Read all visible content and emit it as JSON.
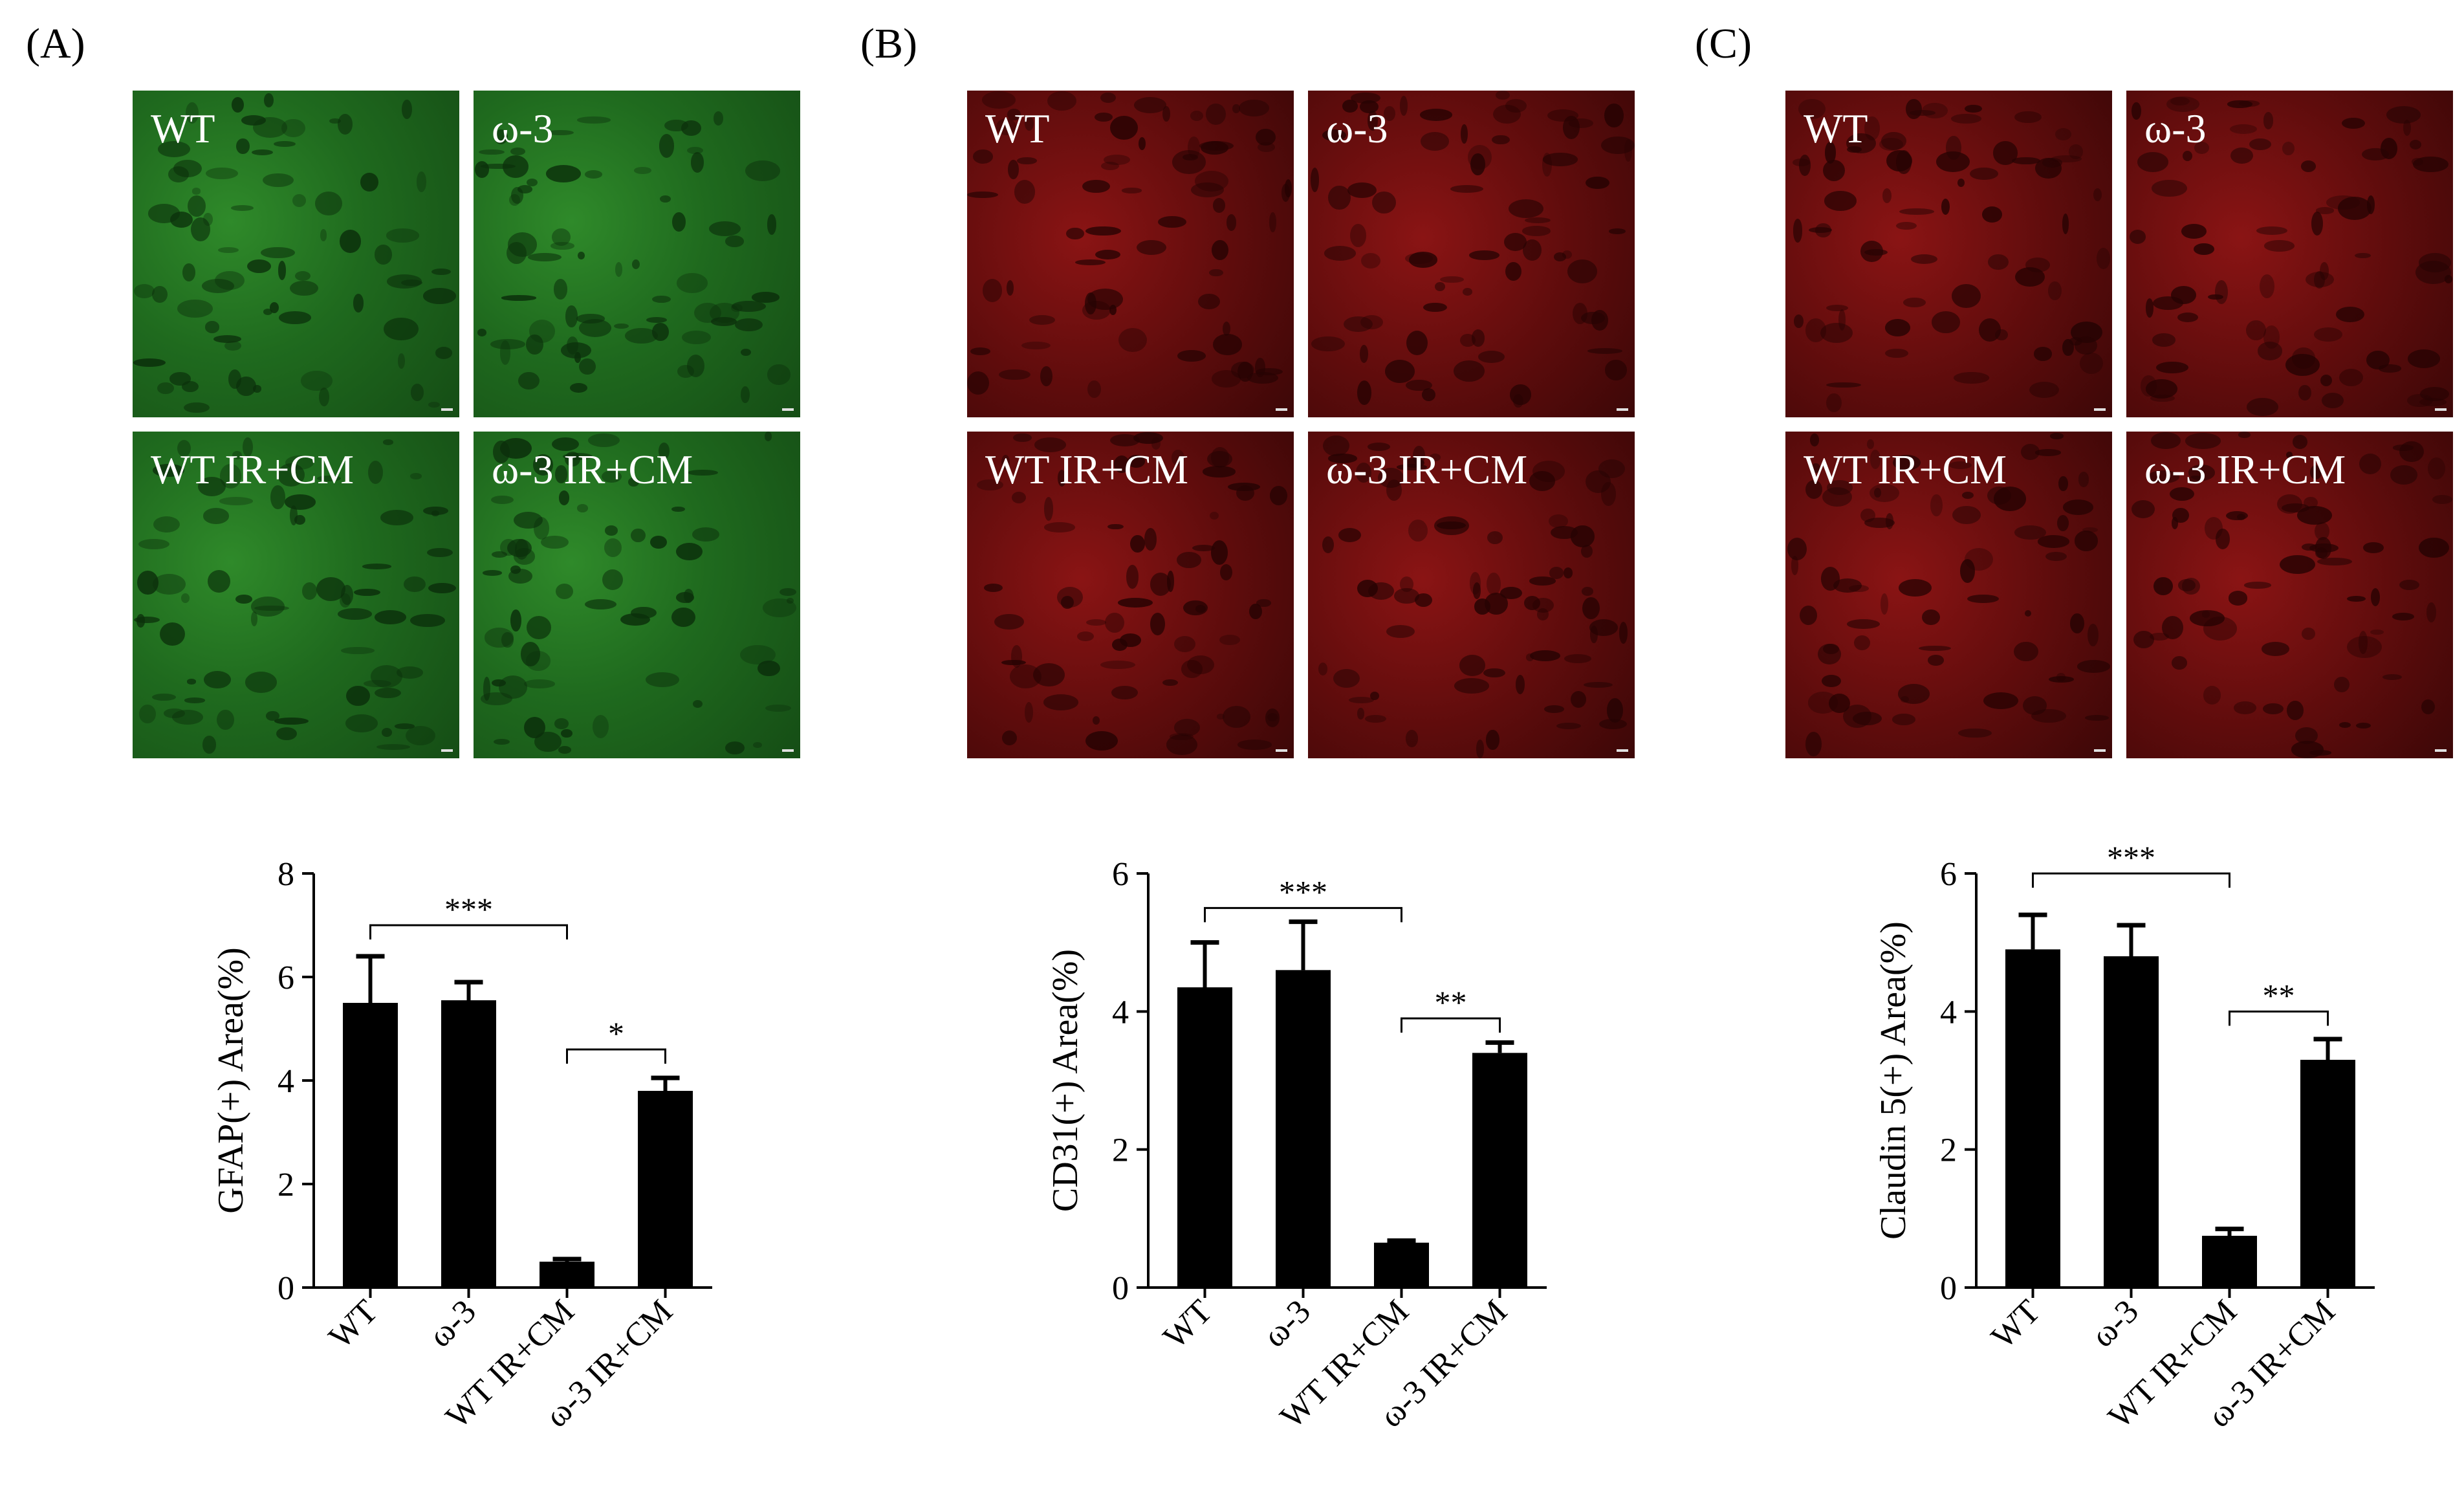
{
  "panels": [
    {
      "label": "(A)",
      "stain": "green",
      "images": [
        "WT",
        "ω-3",
        "WT IR+CM",
        "ω-3 IR+CM"
      ],
      "chart_data": {
        "type": "bar",
        "categories": [
          "WT",
          "ω-3",
          "WT IR+CM",
          "ω-3 IR+CM"
        ],
        "values": [
          5.5,
          5.55,
          0.5,
          3.8
        ],
        "errors": [
          0.9,
          0.35,
          0.05,
          0.25
        ],
        "ylabel": "GFAP(+) Area(%)",
        "ylim": [
          0,
          8
        ],
        "yticks": [
          0,
          2,
          4,
          6,
          8
        ],
        "bar_color": "#000000",
        "significance": [
          {
            "from": 0,
            "to": 2,
            "label": "***",
            "level": 7.0
          },
          {
            "from": 2,
            "to": 3,
            "label": "*",
            "level": 4.6
          }
        ]
      }
    },
    {
      "label": "(B)",
      "stain": "red",
      "images": [
        "WT",
        "ω-3",
        "WT IR+CM",
        "ω-3 IR+CM"
      ],
      "chart_data": {
        "type": "bar",
        "categories": [
          "WT",
          "ω-3",
          "WT IR+CM",
          "ω-3 IR+CM"
        ],
        "values": [
          4.35,
          4.6,
          0.65,
          3.4
        ],
        "errors": [
          0.65,
          0.7,
          0.03,
          0.15
        ],
        "ylabel": "CD31(+) Area(%)",
        "ylim": [
          0,
          6
        ],
        "yticks": [
          0,
          2,
          4,
          6
        ],
        "bar_color": "#000000",
        "significance": [
          {
            "from": 0,
            "to": 2,
            "label": "***",
            "level": 5.5
          },
          {
            "from": 2,
            "to": 3,
            "label": "**",
            "level": 3.9
          }
        ]
      }
    },
    {
      "label": "(C)",
      "stain": "red",
      "images": [
        "WT",
        "ω-3",
        "WT IR+CM",
        "ω-3 IR+CM"
      ],
      "chart_data": {
        "type": "bar",
        "categories": [
          "WT",
          "ω-3",
          "WT IR+CM",
          "ω-3 IR+CM"
        ],
        "values": [
          4.9,
          4.8,
          0.75,
          3.3
        ],
        "errors": [
          0.5,
          0.45,
          0.1,
          0.3
        ],
        "ylabel": "Claudin 5(+) Area(%)",
        "ylim": [
          0,
          6
        ],
        "yticks": [
          0,
          2,
          4,
          6
        ],
        "bar_color": "#000000",
        "significance": [
          {
            "from": 0,
            "to": 2,
            "label": "***",
            "level": 6.0
          },
          {
            "from": 2,
            "to": 3,
            "label": "**",
            "level": 4.0
          }
        ]
      }
    }
  ]
}
